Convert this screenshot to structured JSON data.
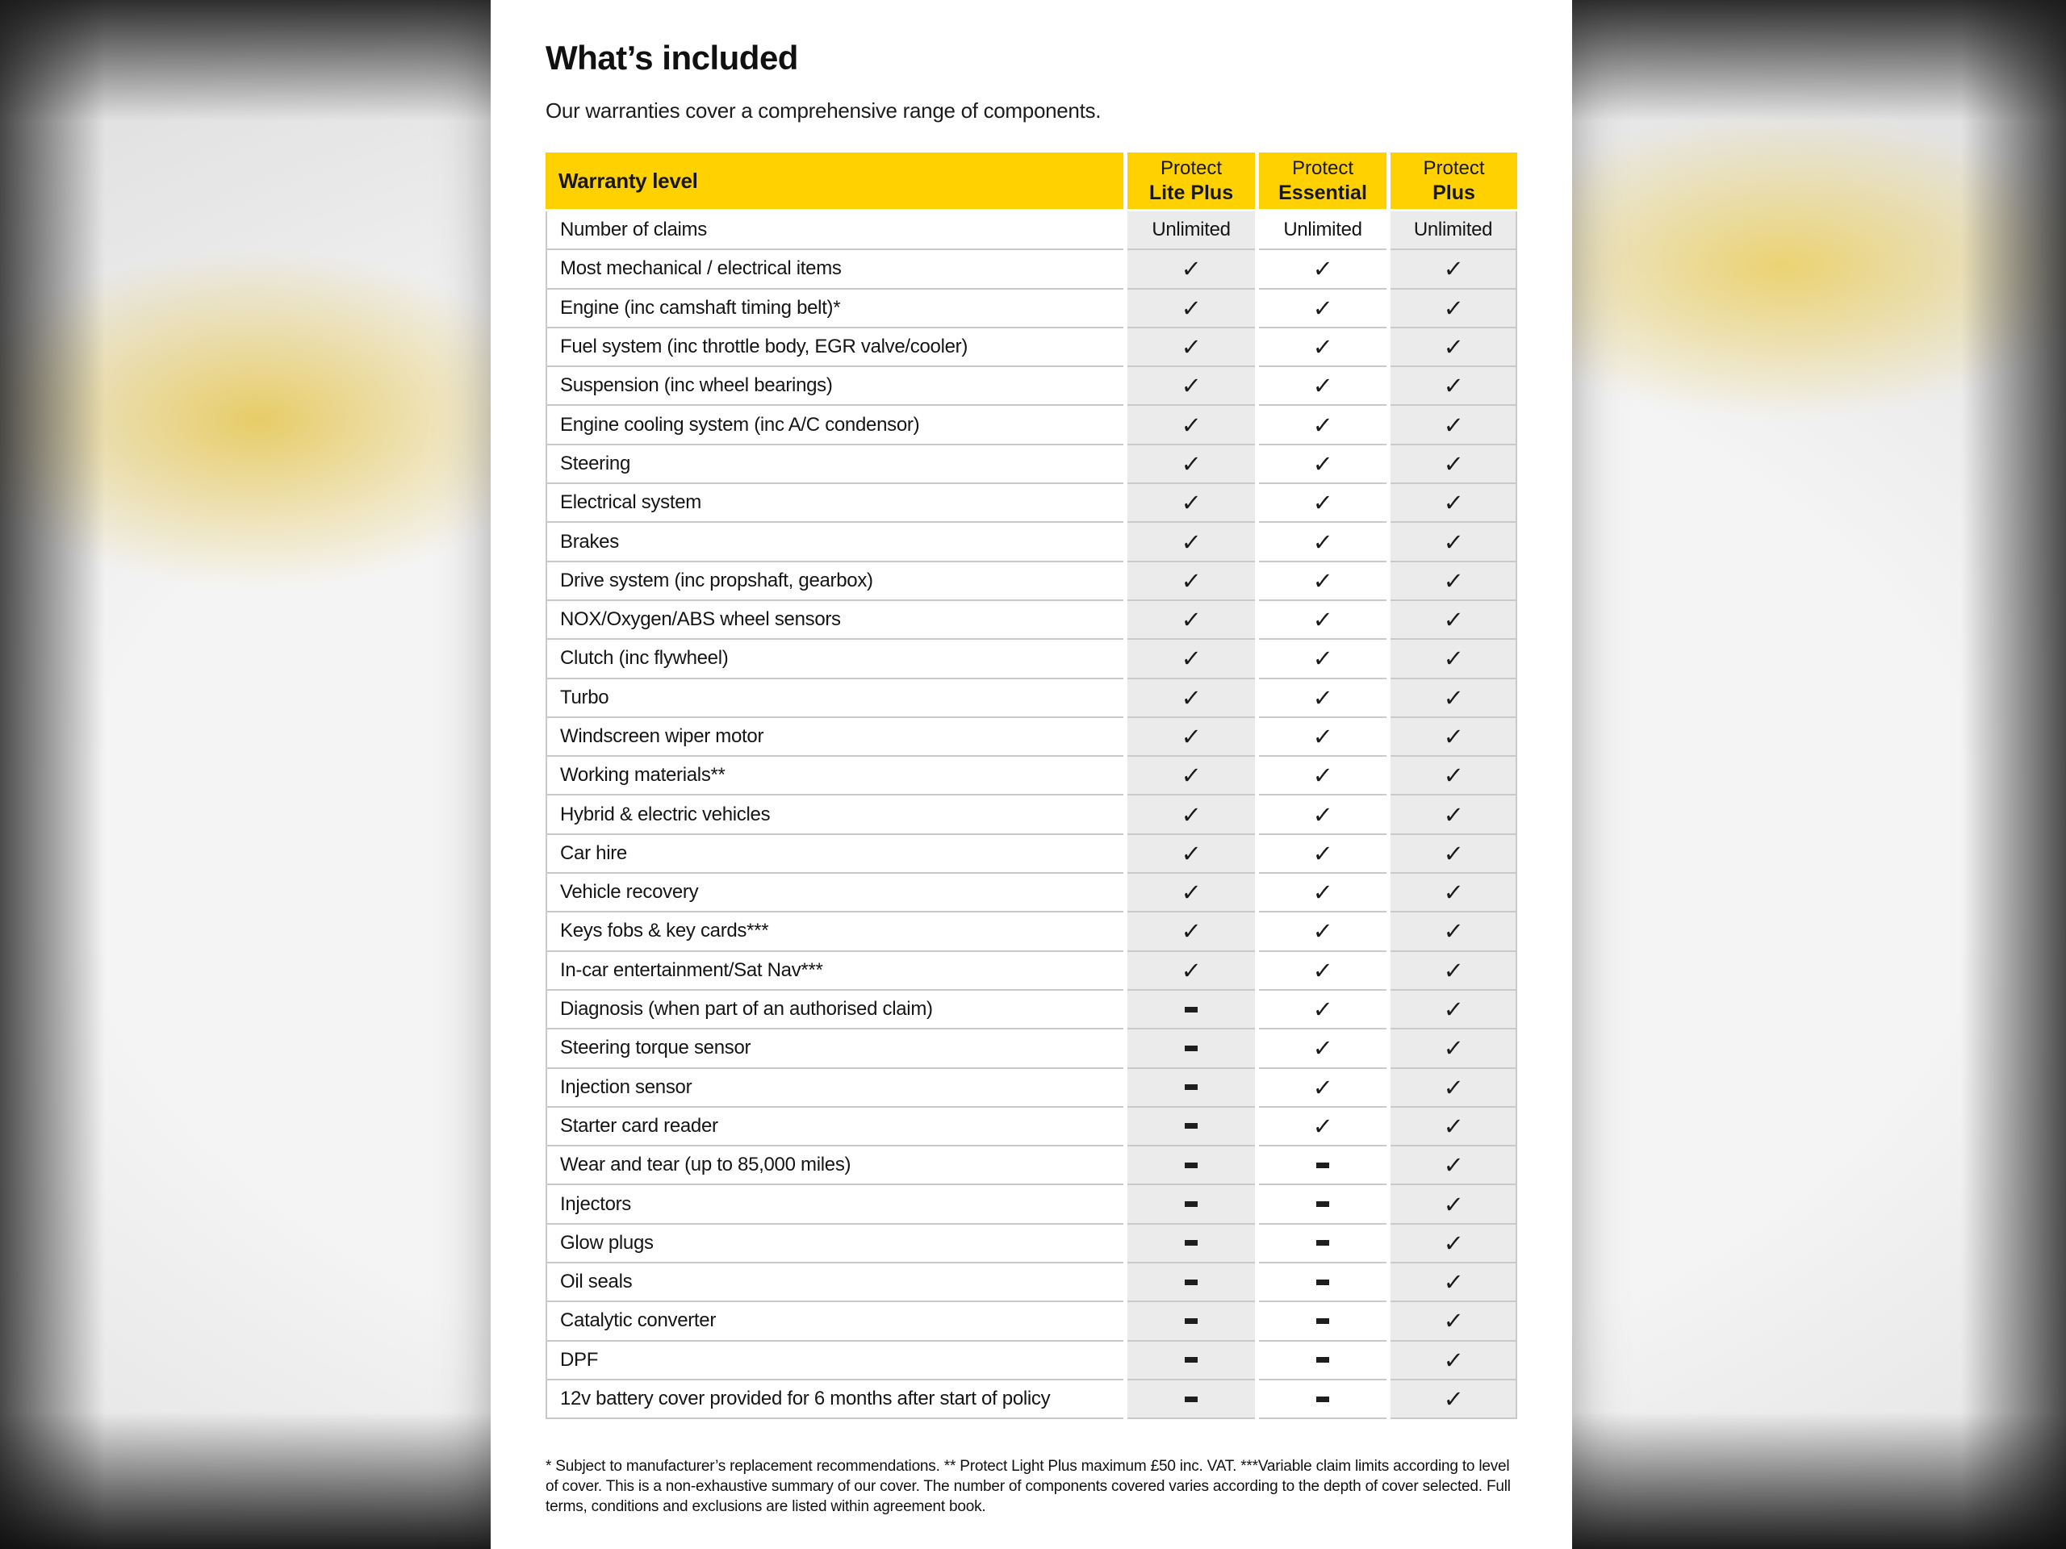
{
  "page": {
    "title": "What’s included",
    "subtitle": "Our warranties cover a comprehensive range of components."
  },
  "table": {
    "header": {
      "first_column": "Warranty level",
      "plans": [
        {
          "line1": "Protect",
          "line2": "Lite Plus"
        },
        {
          "line1": "Protect",
          "line2": "Essential"
        },
        {
          "line1": "Protect",
          "line2": "Plus"
        }
      ]
    },
    "glyphs": {
      "yes": "✓",
      "no": "-"
    },
    "rows": [
      {
        "label": "Number of claims",
        "values": [
          "Unlimited",
          "Unlimited",
          "Unlimited"
        ]
      },
      {
        "label": "Most mechanical / electrical items",
        "values": [
          "yes",
          "yes",
          "yes"
        ]
      },
      {
        "label": "Engine (inc camshaft timing belt)*",
        "values": [
          "yes",
          "yes",
          "yes"
        ]
      },
      {
        "label": "Fuel system (inc throttle body, EGR valve/cooler)",
        "values": [
          "yes",
          "yes",
          "yes"
        ]
      },
      {
        "label": "Suspension (inc wheel bearings)",
        "values": [
          "yes",
          "yes",
          "yes"
        ]
      },
      {
        "label": "Engine cooling system (inc A/C condensor)",
        "values": [
          "yes",
          "yes",
          "yes"
        ]
      },
      {
        "label": "Steering",
        "values": [
          "yes",
          "yes",
          "yes"
        ]
      },
      {
        "label": "Electrical system",
        "values": [
          "yes",
          "yes",
          "yes"
        ]
      },
      {
        "label": "Brakes",
        "values": [
          "yes",
          "yes",
          "yes"
        ]
      },
      {
        "label": "Drive system (inc propshaft, gearbox)",
        "values": [
          "yes",
          "yes",
          "yes"
        ]
      },
      {
        "label": "NOX/Oxygen/ABS wheel sensors",
        "values": [
          "yes",
          "yes",
          "yes"
        ]
      },
      {
        "label": "Clutch (inc flywheel)",
        "values": [
          "yes",
          "yes",
          "yes"
        ]
      },
      {
        "label": "Turbo",
        "values": [
          "yes",
          "yes",
          "yes"
        ]
      },
      {
        "label": "Windscreen wiper motor",
        "values": [
          "yes",
          "yes",
          "yes"
        ]
      },
      {
        "label": "Working materials**",
        "values": [
          "yes",
          "yes",
          "yes"
        ]
      },
      {
        "label": "Hybrid & electric vehicles",
        "values": [
          "yes",
          "yes",
          "yes"
        ]
      },
      {
        "label": "Car hire",
        "values": [
          "yes",
          "yes",
          "yes"
        ]
      },
      {
        "label": "Vehicle recovery",
        "values": [
          "yes",
          "yes",
          "yes"
        ]
      },
      {
        "label": "Keys fobs & key cards***",
        "values": [
          "yes",
          "yes",
          "yes"
        ]
      },
      {
        "label": "In-car entertainment/Sat Nav***",
        "values": [
          "yes",
          "yes",
          "yes"
        ]
      },
      {
        "label": "Diagnosis (when part of an authorised claim)",
        "values": [
          "no",
          "yes",
          "yes"
        ]
      },
      {
        "label": "Steering torque sensor",
        "values": [
          "no",
          "yes",
          "yes"
        ]
      },
      {
        "label": "Injection sensor",
        "values": [
          "no",
          "yes",
          "yes"
        ]
      },
      {
        "label": "Starter card reader",
        "values": [
          "no",
          "yes",
          "yes"
        ]
      },
      {
        "label": "Wear and tear (up to 85,000 miles)",
        "values": [
          "no",
          "no",
          "yes"
        ]
      },
      {
        "label": "Injectors",
        "values": [
          "no",
          "no",
          "yes"
        ]
      },
      {
        "label": "Glow plugs",
        "values": [
          "no",
          "no",
          "yes"
        ]
      },
      {
        "label": "Oil seals",
        "values": [
          "no",
          "no",
          "yes"
        ]
      },
      {
        "label": "Catalytic converter",
        "values": [
          "no",
          "no",
          "yes"
        ]
      },
      {
        "label": "DPF",
        "values": [
          "no",
          "no",
          "yes"
        ]
      },
      {
        "label": "12v battery cover provided for 6 months after start of policy",
        "values": [
          "no",
          "no",
          "yes"
        ]
      }
    ]
  },
  "footnote": "* Subject to manufacturer’s replacement recommendations. ** Protect Light Plus maximum £50 inc. VAT. ***Variable claim limits according to level of cover. This is a non-exhaustive summary of our cover. The number of components covered varies according to the depth of cover selected. Full terms, conditions and exclusions are listed within agreement book.",
  "colors": {
    "brand_yellow": "#FFD100",
    "column_gray": "#EBEBEB",
    "divider_gray": "#C9C9C9",
    "panel_white": "#FFFFFF",
    "text_black": "#151515"
  }
}
